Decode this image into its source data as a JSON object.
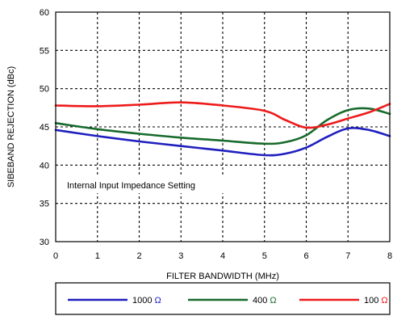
{
  "chart_data": {
    "type": "line",
    "title": "",
    "xlabel": "FILTER BANDWIDTH (MHz)",
    "ylabel": "SIBEBAND REJECTION (dBc)",
    "xlim": [
      0,
      8
    ],
    "ylim": [
      30,
      60
    ],
    "xticks": [
      "0",
      "1",
      "2",
      "3",
      "4",
      "5",
      "6",
      "7",
      "8"
    ],
    "yticks": [
      "30",
      "35",
      "40",
      "45",
      "50",
      "55",
      "60"
    ],
    "grid": true,
    "legend_position": "bottom",
    "annotation": "Internal Input Impedance Setting",
    "series": [
      {
        "name": "1000 Ω",
        "color": "#1f1fbf",
        "x": [
          0,
          1,
          2,
          3,
          4,
          5,
          5.5,
          6,
          6.5,
          7,
          7.5,
          8
        ],
        "y": [
          44.6,
          43.8,
          43.1,
          42.5,
          41.9,
          41.3,
          41.5,
          42.3,
          43.7,
          44.8,
          44.6,
          43.8
        ]
      },
      {
        "name": "400 Ω",
        "color": "#176a2c",
        "x": [
          0,
          1,
          2,
          3,
          4,
          5,
          5.5,
          6,
          6.5,
          7,
          7.5,
          8
        ],
        "y": [
          45.5,
          44.7,
          44.1,
          43.6,
          43.2,
          42.8,
          43.0,
          43.9,
          45.9,
          47.2,
          47.4,
          46.7
        ]
      },
      {
        "name": "100 Ω",
        "color": "#ee1b1b",
        "x": [
          0,
          1,
          2,
          3,
          4,
          5,
          5.5,
          6,
          6.5,
          7,
          7.5,
          8
        ],
        "y": [
          47.8,
          47.7,
          47.9,
          48.2,
          47.8,
          47.1,
          45.9,
          44.9,
          45.3,
          46.1,
          46.9,
          48.0
        ]
      }
    ]
  }
}
